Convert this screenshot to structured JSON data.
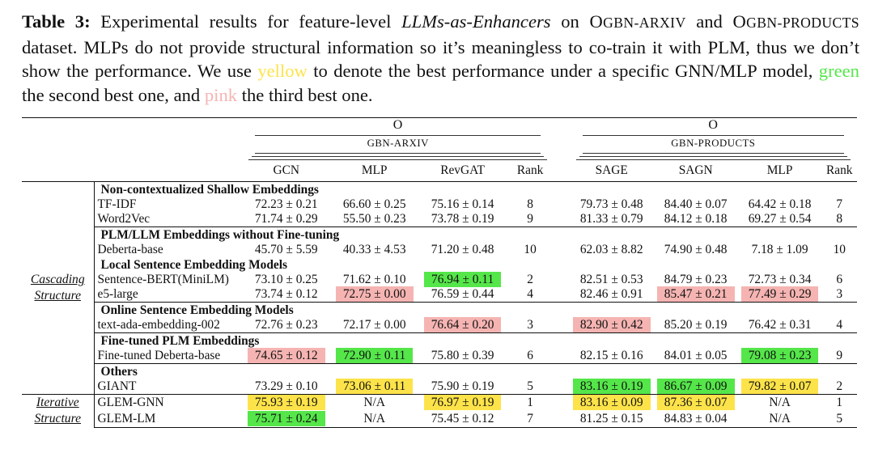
{
  "caption": {
    "label": "Table 3:",
    "t1": " Experimental results for feature-level ",
    "t2": "LLMs-as-Enhancers",
    "t3": " on ",
    "d1_cap": "O",
    "d1_rest": "GBN-ARXIV",
    "t4": " and ",
    "d2_cap": "O",
    "d2_rest": "GBN-PRODUCTS",
    "t5": " dataset. MLPs do not provide structural information so it’s meaningless to co-train it with PLM, thus we don’t show the performance. We use ",
    "yellow_word": "yellow",
    "t6": " to denote the best performance under a specific GNN/MLP model, ",
    "green_word": "green",
    "t7": " the second best one, and ",
    "pink_word": "pink",
    "t8": " the third best one."
  },
  "colors": {
    "best": "#fde34a",
    "second": "#55e64a",
    "third": "#f5b4b2"
  },
  "groups": {
    "arxiv": "Ogbn-arxiv",
    "products": "Ogbn-products"
  },
  "columns": [
    "GCN",
    "MLP",
    "RevGAT",
    "Rank",
    "SAGE",
    "SAGN",
    "MLP",
    "Rank"
  ],
  "structures": {
    "cascading": [
      "Cascading",
      "Structure"
    ],
    "iterative": [
      "Iterative",
      "Structure"
    ]
  },
  "sections": [
    {
      "title": "Non-contextualized Shallow Embeddings",
      "rows": [
        {
          "name": "TF-IDF",
          "cells": [
            "72.23 ± 0.21",
            "66.60 ± 0.25",
            "75.16 ± 0.14",
            "8",
            "79.73 ± 0.48",
            "84.40 ± 0.07",
            "64.42 ± 0.18",
            "7"
          ]
        },
        {
          "name": "Word2Vec",
          "cells": [
            "71.74 ± 0.29",
            "55.50 ± 0.23",
            "73.78 ± 0.19",
            "9",
            "81.33 ± 0.79",
            "84.12 ± 0.18",
            "69.27 ± 0.54",
            "8"
          ]
        }
      ]
    },
    {
      "title": "PLM/LLM Embeddings without Fine-tuning",
      "rows": [
        {
          "name": "Deberta-base",
          "cells": [
            "45.70 ± 5.59",
            "40.33 ± 4.53",
            "71.20 ± 0.48",
            "10",
            "62.03 ± 8.82",
            "74.90 ± 0.48",
            "7.18 ± 1.09",
            "10"
          ]
        }
      ]
    },
    {
      "title": "Local Sentence Embedding Models",
      "rows": [
        {
          "name": "Sentence-BERT(MiniLM)",
          "cells": [
            "73.10 ± 0.25",
            "71.62 ± 0.10",
            "76.94 ± 0.11",
            "2",
            "82.51 ± 0.53",
            "84.79 ± 0.23",
            "72.73 ± 0.34",
            "6"
          ]
        },
        {
          "name": "e5-large",
          "cells": [
            "73.74 ± 0.12",
            "72.75 ± 0.00",
            "76.59 ± 0.44",
            "4",
            "82.46 ± 0.91",
            "85.47 ± 0.21",
            "77.49 ± 0.29",
            "3"
          ]
        }
      ]
    },
    {
      "title": "Online Sentence Embedding Models",
      "rows": [
        {
          "name": "text-ada-embedding-002",
          "cells": [
            "72.76 ± 0.23",
            "72.17 ± 0.00",
            "76.64 ± 0.20",
            "3",
            "82.90 ± 0.42",
            "85.20 ± 0.19",
            "76.42 ± 0.31",
            "4"
          ]
        }
      ]
    },
    {
      "title": "Fine-tuned PLM Embeddings",
      "rows": [
        {
          "name": "Fine-tuned Deberta-base",
          "cells": [
            "74.65 ± 0.12",
            "72.90 ± 0.11",
            "75.80 ± 0.39",
            "6",
            "82.15 ± 0.16",
            "84.01 ± 0.05",
            "79.08 ± 0.23",
            "9"
          ]
        }
      ]
    },
    {
      "title": "Others",
      "rows": [
        {
          "name": "GIANT",
          "cells": [
            "73.29 ± 0.10",
            "73.06 ± 0.11",
            "75.90 ± 0.19",
            "5",
            "83.16 ± 0.19",
            "86.67 ± 0.09",
            "79.82 ± 0.07",
            "2"
          ]
        }
      ]
    }
  ],
  "iterative_rows": [
    {
      "name": "GLEM-GNN",
      "cells": [
        "75.93 ± 0.19",
        "N/A",
        "76.97 ± 0.19",
        "1",
        "83.16 ± 0.09",
        "87.36 ± 0.07",
        "N/A",
        "1"
      ]
    },
    {
      "name": "GLEM-LM",
      "cells": [
        "75.71 ± 0.24",
        "N/A",
        "75.45 ± 0.12",
        "7",
        "81.25 ± 0.15",
        "84.83 ± 0.04",
        "N/A",
        "5"
      ]
    }
  ]
}
